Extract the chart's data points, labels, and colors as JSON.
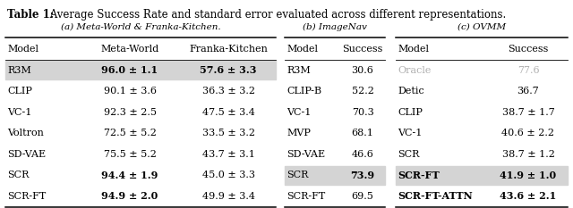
{
  "title_bold": "Table 1:",
  "title_rest": " Average Success Rate and standard error evaluated across different representations.",
  "subtitle_a": "(a) Meta-World & Franka-Kitchen.",
  "subtitle_b": "(b) ImageNav",
  "subtitle_c": "(c) OVMM",
  "table_a_rows": [
    [
      "R3M",
      "96.0 ± 1.1",
      "57.6 ± 3.3",
      true,
      true,
      true
    ],
    [
      "CLIP",
      "90.1 ± 3.6",
      "36.3 ± 3.2",
      false,
      false,
      false
    ],
    [
      "VC-1",
      "92.3 ± 2.5",
      "47.5 ± 3.4",
      false,
      false,
      false
    ],
    [
      "Voltron",
      "72.5 ± 5.2",
      "33.5 ± 3.2",
      false,
      false,
      false
    ],
    [
      "SD-VAE",
      "75.5 ± 5.2",
      "43.7 ± 3.1",
      false,
      false,
      false
    ],
    [
      "SCR",
      "94.4 ± 1.9",
      "45.0 ± 3.3",
      false,
      true,
      false
    ],
    [
      "SCR-FT",
      "94.9 ± 2.0",
      "49.9 ± 3.4",
      false,
      true,
      false
    ]
  ],
  "table_a_highlight": [
    0
  ],
  "table_b_rows": [
    [
      "R3M",
      "30.6",
      false,
      false
    ],
    [
      "CLIP-B",
      "52.2",
      false,
      false
    ],
    [
      "VC-1",
      "70.3",
      false,
      false
    ],
    [
      "MVP",
      "68.1",
      false,
      false
    ],
    [
      "SD-VAE",
      "46.6",
      false,
      false
    ],
    [
      "SCR",
      "73.9",
      true,
      true
    ],
    [
      "SCR-FT",
      "69.5",
      false,
      false
    ]
  ],
  "table_b_highlight": [
    5
  ],
  "table_c_rows": [
    [
      "Oracle",
      "77.6",
      false,
      false,
      true
    ],
    [
      "Detic",
      "36.7",
      false,
      false,
      false
    ],
    [
      "CLIP",
      "38.7 ± 1.7",
      false,
      false,
      false
    ],
    [
      "VC-1",
      "40.6 ± 2.2",
      false,
      false,
      false
    ],
    [
      "SCR",
      "38.7 ± 1.2",
      false,
      false,
      false
    ],
    [
      "SCR-FT",
      "41.9 ± 1.0",
      true,
      true,
      false
    ],
    [
      "SCR-FT-ATTN",
      "43.6 ± 2.1",
      false,
      true,
      false
    ]
  ],
  "table_c_highlight": [
    5
  ],
  "table_c_grayed": [
    0
  ],
  "highlight_color": "#d4d4d4",
  "gray_color": "#b0b0b0",
  "font_size": 8.0
}
